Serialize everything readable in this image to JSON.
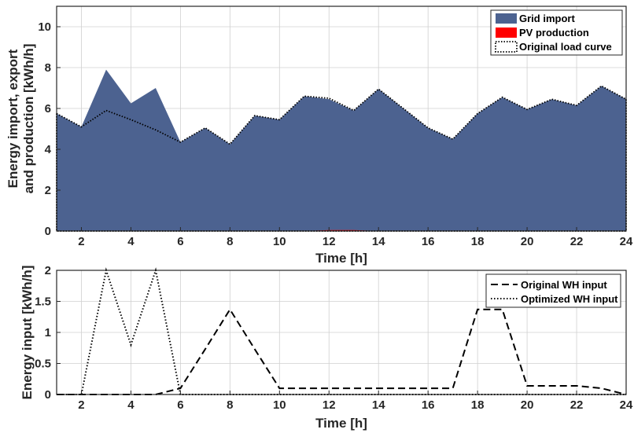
{
  "colors": {
    "grid_import": "#4C6290",
    "pv_production": "#FF0000",
    "original_load": "#000000",
    "axes": "#262626",
    "gridlines": "#d0d0d0"
  },
  "chart_data": [
    {
      "type": "area",
      "xlabel": "Time [h]",
      "ylabel": "Energy import, export and production [kWh/h]",
      "ylabel_lines": [
        "Energy import, export",
        "and production [kWh/h]"
      ],
      "xlim": [
        1,
        24
      ],
      "ylim": [
        0,
        11
      ],
      "xticks": [
        2,
        4,
        6,
        8,
        10,
        12,
        14,
        16,
        18,
        20,
        22,
        24
      ],
      "yticks": [
        0,
        2,
        4,
        6,
        8,
        10
      ],
      "grid": true,
      "legend_position": "top-right",
      "x": [
        1,
        2,
        3,
        4,
        5,
        6,
        7,
        8,
        9,
        10,
        11,
        12,
        13,
        14,
        15,
        16,
        17,
        18,
        19,
        20,
        21,
        22,
        23,
        24
      ],
      "series": [
        {
          "name": "Grid import",
          "style": "filled-area",
          "values": [
            5.75,
            5.1,
            7.9,
            6.25,
            7.0,
            4.35,
            5.05,
            4.25,
            5.65,
            5.45,
            6.6,
            6.45,
            5.9,
            6.95,
            6.0,
            5.05,
            4.5,
            5.75,
            6.55,
            5.95,
            6.45,
            6.15,
            7.1,
            6.45
          ]
        },
        {
          "name": "PV production",
          "style": "filled-area",
          "values": [
            0,
            0,
            0,
            0,
            0,
            0,
            0,
            0,
            0,
            0,
            0,
            0.05,
            0.05,
            0,
            0,
            0,
            0,
            0,
            0,
            0,
            0,
            0,
            0,
            0
          ]
        },
        {
          "name": "Original load curve",
          "style": "dotted-line",
          "values": [
            5.75,
            5.1,
            5.9,
            5.45,
            4.95,
            4.35,
            5.05,
            4.25,
            5.65,
            5.45,
            6.6,
            6.5,
            5.9,
            6.95,
            6.0,
            5.05,
            4.5,
            5.75,
            6.55,
            5.95,
            6.45,
            6.15,
            7.1,
            6.45
          ]
        }
      ]
    },
    {
      "type": "line",
      "xlabel": "Time [h]",
      "ylabel": "Energy input [kWh/h]",
      "xlim": [
        1,
        24
      ],
      "ylim": [
        0,
        2
      ],
      "xticks": [
        2,
        4,
        6,
        8,
        10,
        12,
        14,
        16,
        18,
        20,
        22,
        24
      ],
      "yticks": [
        0,
        0.5,
        1,
        1.5,
        2
      ],
      "ytick_labels": [
        "0",
        "0.5",
        "1",
        "1.5",
        "2"
      ],
      "grid": true,
      "legend_position": "top-right",
      "x": [
        1,
        2,
        3,
        4,
        5,
        6,
        7,
        8,
        9,
        10,
        11,
        12,
        13,
        14,
        15,
        16,
        17,
        18,
        19,
        20,
        21,
        22,
        23,
        24
      ],
      "series": [
        {
          "name": "Original WH input",
          "style": "dashed",
          "values": [
            0,
            0,
            0,
            0,
            0,
            0.1,
            0.73,
            1.37,
            0.73,
            0.1,
            0.1,
            0.1,
            0.1,
            0.1,
            0.1,
            0.1,
            0.1,
            1.37,
            1.37,
            0.14,
            0.14,
            0.14,
            0.1,
            0
          ]
        },
        {
          "name": "Optimized WH input",
          "style": "dotted",
          "values": [
            0,
            0,
            2.0,
            0.8,
            2.0,
            0,
            0,
            0,
            0,
            0,
            0,
            0,
            0,
            0,
            0,
            0,
            0,
            0,
            0,
            0,
            0,
            0,
            0,
            0
          ]
        }
      ]
    }
  ]
}
